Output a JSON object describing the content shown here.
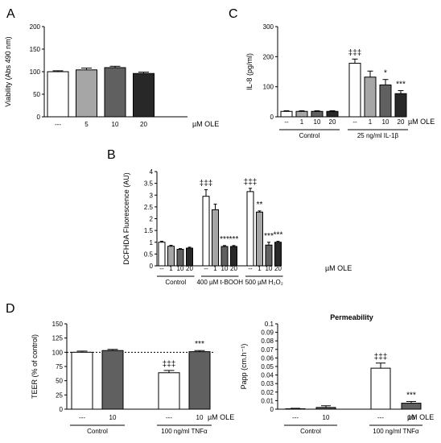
{
  "chart_data": [
    {
      "id": "A",
      "type": "bar",
      "panel_letter": "A",
      "ylabel": "Viability (Abs 490 nm)",
      "ylim": [
        0,
        200
      ],
      "yticks": [
        0,
        50,
        100,
        150,
        200
      ],
      "ytick_labels": [
        "0",
        "50",
        "100",
        "150",
        "200"
      ],
      "categories": [
        "---",
        "5",
        "10",
        "20"
      ],
      "values": [
        100,
        104,
        109,
        96
      ],
      "errors": [
        2,
        4,
        3,
        3
      ],
      "colors": [
        "#ffffff",
        "#a6a6a6",
        "#606060",
        "#282828"
      ],
      "unit_label": "µM OLE",
      "groups": [],
      "annotations": [],
      "dashed_ref": null
    },
    {
      "id": "C",
      "type": "bar",
      "panel_letter": "C",
      "ylabel": "IL-8 (pg/ml)",
      "ylim": [
        0,
        300
      ],
      "yticks": [
        0,
        100,
        200,
        300
      ],
      "ytick_labels": [
        "0",
        "100",
        "200",
        "300"
      ],
      "categories": [
        "--",
        "1",
        "10",
        "20",
        "--",
        "1",
        "10",
        "20"
      ],
      "values": [
        18,
        18,
        18,
        18,
        178,
        132,
        106,
        77
      ],
      "errors": [
        2,
        2,
        2,
        2,
        14,
        20,
        18,
        10
      ],
      "colors": [
        "#ffffff",
        "#a6a6a6",
        "#606060",
        "#282828",
        "#ffffff",
        "#a6a6a6",
        "#606060",
        "#282828"
      ],
      "unit_label": "µM OLE",
      "groups": [
        {
          "label": "Control",
          "from": 0,
          "to": 3
        },
        {
          "label": "25 ng/ml IL-1β",
          "from": 4,
          "to": 7
        }
      ],
      "annotations": [
        {
          "bar": 4,
          "text": "‡‡‡"
        },
        {
          "bar": 6,
          "text": "*"
        },
        {
          "bar": 7,
          "text": "***"
        }
      ],
      "dashed_ref": null
    },
    {
      "id": "B",
      "type": "bar",
      "panel_letter": "B",
      "ylabel": "DCFHDA Fluorescence (AU)",
      "ylim": [
        0,
        4
      ],
      "yticks": [
        0,
        0.5,
        1,
        1.5,
        2,
        2.5,
        3,
        3.5,
        4
      ],
      "ytick_labels": [
        "0",
        "0.5",
        "1",
        "1.5",
        "2",
        "2.5",
        "3",
        "3.5",
        "4"
      ],
      "categories": [
        "--",
        "1",
        "10",
        "20",
        "--",
        "1",
        "10",
        "20",
        "--",
        "1",
        "10",
        "20"
      ],
      "values": [
        1.0,
        0.83,
        0.7,
        0.75,
        2.95,
        2.38,
        0.82,
        0.82,
        3.15,
        2.28,
        0.88,
        1.0
      ],
      "errors": [
        0.04,
        0.04,
        0.03,
        0.04,
        0.28,
        0.24,
        0.04,
        0.04,
        0.14,
        0.05,
        0.12,
        0.04
      ],
      "colors": [
        "#ffffff",
        "#a6a6a6",
        "#606060",
        "#282828",
        "#ffffff",
        "#a6a6a6",
        "#606060",
        "#282828",
        "#ffffff",
        "#a6a6a6",
        "#606060",
        "#282828"
      ],
      "unit_label": "µM OLE",
      "groups": [
        {
          "label": "Control",
          "from": 0,
          "to": 3
        },
        {
          "label": "400 µM t-BOOH",
          "from": 4,
          "to": 7
        },
        {
          "label": "500 µM H₂O₂",
          "from": 8,
          "to": 11
        }
      ],
      "annotations": [
        {
          "bar": 4,
          "text": "‡‡‡"
        },
        {
          "bar": 6,
          "text": "***"
        },
        {
          "bar": 7,
          "text": "***"
        },
        {
          "bar": 8,
          "text": "‡‡‡"
        },
        {
          "bar": 9,
          "text": "**"
        },
        {
          "bar": 10,
          "text": "***"
        },
        {
          "bar": 11,
          "text": "***"
        }
      ],
      "dashed_ref": null
    },
    {
      "id": "D1",
      "type": "bar",
      "panel_letter": "D",
      "ylabel": "TEER (% of control)",
      "ylim": [
        0,
        150
      ],
      "yticks": [
        0,
        25,
        50,
        75,
        100,
        125,
        150
      ],
      "ytick_labels": [
        "0",
        "25",
        "50",
        "75",
        "100",
        "125",
        "150"
      ],
      "categories": [
        "---",
        "10",
        "---",
        "10"
      ],
      "values": [
        100,
        103,
        64,
        101
      ],
      "errors": [
        2,
        2,
        4,
        2
      ],
      "colors": [
        "#ffffff",
        "#606060",
        "#ffffff",
        "#606060"
      ],
      "unit_label": "µM OLE",
      "groups": [
        {
          "label": "Control",
          "from": 0,
          "to": 1
        },
        {
          "label": "100 ng/ml TNFα",
          "from": 2,
          "to": 3
        }
      ],
      "annotations": [
        {
          "bar": 2,
          "text": "‡‡‡"
        },
        {
          "bar": 3,
          "text": "***"
        }
      ],
      "dashed_ref": 100
    },
    {
      "id": "D2",
      "type": "bar",
      "panel_letter": "",
      "title": "Permeability",
      "ylabel": "Papp (cm.h⁻¹)",
      "ylim": [
        0,
        0.1
      ],
      "yticks": [
        0,
        0.01,
        0.02,
        0.03,
        0.04,
        0.05,
        0.06,
        0.07,
        0.08,
        0.09,
        0.1
      ],
      "ytick_labels": [
        "0",
        "0.01",
        "0.02",
        "0.03",
        "0.04",
        "0.05",
        "0.06",
        "0.07",
        "0.08",
        "0.09",
        "0.1"
      ],
      "categories": [
        "---",
        "10",
        "---",
        "10"
      ],
      "values": [
        0.0,
        0.002,
        0.048,
        0.007
      ],
      "errors": [
        0.001,
        0.002,
        0.006,
        0.002
      ],
      "colors": [
        "#ffffff",
        "#606060",
        "#ffffff",
        "#606060"
      ],
      "unit_label": "µM OLE",
      "groups": [
        {
          "label": "Control",
          "from": 0,
          "to": 1
        },
        {
          "label": "100 ng/ml TNFα",
          "from": 2,
          "to": 3
        }
      ],
      "annotations": [
        {
          "bar": 2,
          "text": "‡‡‡"
        },
        {
          "bar": 3,
          "text": "***"
        }
      ],
      "dashed_ref": null
    }
  ]
}
